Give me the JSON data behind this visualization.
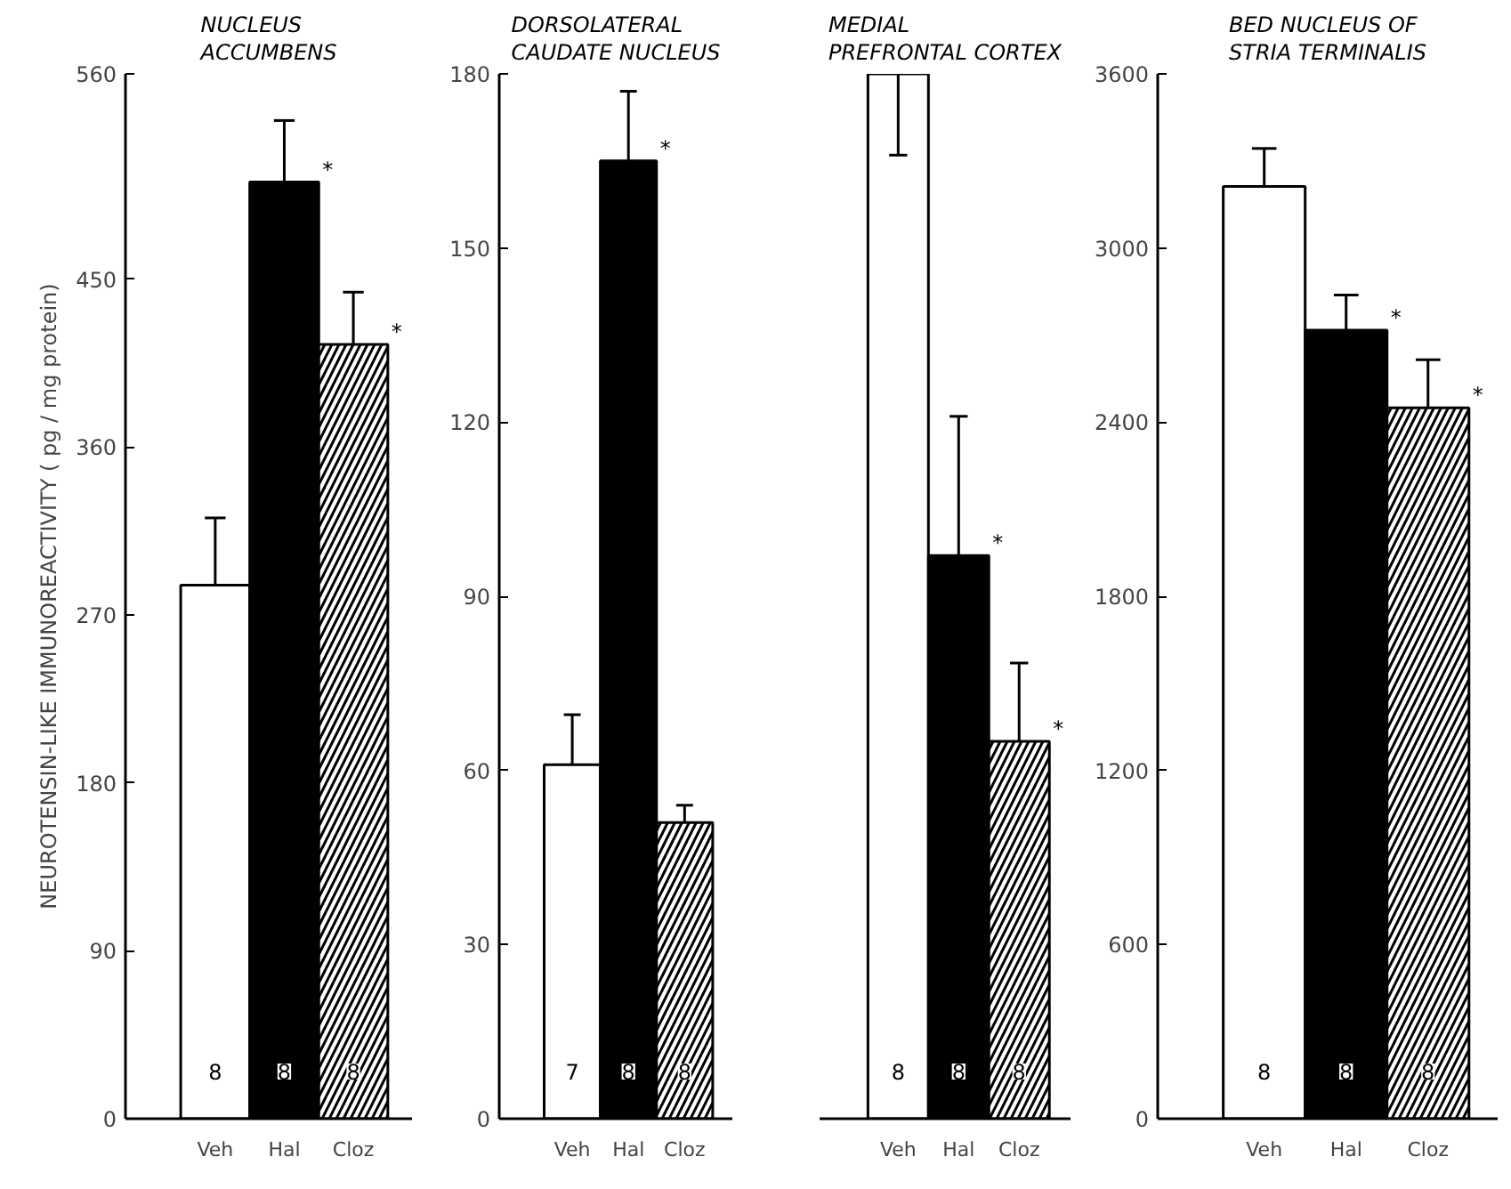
{
  "chart_data": [
    {
      "type": "bar",
      "title": "NUCLEUS\nACCUMBENS",
      "ylabel": "NEUROTENSIN-LIKE IMMUNOREACTIVITY ( pg / mg protein)",
      "categories": [
        "Veh",
        "Hal",
        "Cloz"
      ],
      "values": [
        286,
        502,
        415
      ],
      "colors": [
        "#ffffff",
        "#000000",
        "#ffffff"
      ],
      "errors": [
        [
          286,
          322
        ],
        [
          502,
          535
        ],
        [
          415,
          443
        ]
      ],
      "ylim": [
        0,
        560
      ],
      "yticks": [
        0,
        90,
        180,
        270,
        360,
        450,
        560
      ],
      "grid": false,
      "annotations": [
        "8",
        "8",
        "8",
        {
          "text": "*",
          "x": "Hal",
          "y": 502
        },
        {
          "text": "*",
          "x": "Cloz",
          "y": 415
        }
      ]
    },
    {
      "type": "bar",
      "title": "DORSOLATERAL\nCAUDATE NUCLEUS",
      "categories": [
        "Veh",
        "Hal",
        "Cloz"
      ],
      "values": [
        61,
        165,
        51
      ],
      "colors": [
        "#ffffff",
        "#000000",
        "#ffffff"
      ],
      "errors": [
        [
          61,
          69.6
        ],
        [
          165,
          177
        ],
        [
          51,
          54
        ]
      ],
      "ylim": [
        0,
        180
      ],
      "yticks": [
        0,
        30,
        60,
        90,
        120,
        150,
        180
      ],
      "grid": false,
      "annotations": [
        "7",
        "8",
        "8",
        {
          "text": "*",
          "x": "Hal",
          "y": 165
        }
      ]
    },
    {
      "type": "bar",
      "title": "MEDIAL\nPREFRONTAL CORTEX",
      "categories": [
        "Veh",
        "Hal",
        "Cloz"
      ],
      "values": [
        180,
        97,
        65
      ],
      "colors": [
        "#ffffff",
        "#000000",
        "#ffffff"
      ],
      "errors": [
        [
          166,
          180
        ],
        [
          97,
          121
        ],
        [
          65,
          78.5
        ]
      ],
      "ylim": [
        0,
        180
      ],
      "yticks": [
        0,
        30,
        60,
        90,
        120,
        150,
        180
      ],
      "tick_labels": "x",
      "grid": false,
      "annotations": [
        "8",
        "8",
        "8",
        {
          "text": "*",
          "x": "Hal",
          "y": 97
        },
        {
          "text": "*",
          "x": "Cloz",
          "y": 65
        }
      ]
    },
    {
      "type": "bar",
      "title": "BED NUCLEUS OF\nSTRIA TERMINALIS",
      "categories": [
        "Veh",
        "Hal",
        "Cloz"
      ],
      "values": [
        3212,
        2717,
        2449
      ],
      "colors": [
        "#ffffff",
        "#000000",
        "#ffffff"
      ],
      "errors": [
        [
          3212,
          3343
        ],
        [
          2717,
          2838
        ],
        [
          2449,
          2615
        ]
      ],
      "ylim": [
        0,
        3600
      ],
      "yticks": [
        0,
        600,
        1200,
        1800,
        2400,
        3000,
        3600
      ],
      "grid": false,
      "annotations": [
        "8",
        "8",
        "8",
        {
          "text": "*",
          "x": "Hal",
          "y": 2717
        },
        {
          "text": "*",
          "x": "Cloz",
          "y": 2449
        }
      ]
    }
  ]
}
